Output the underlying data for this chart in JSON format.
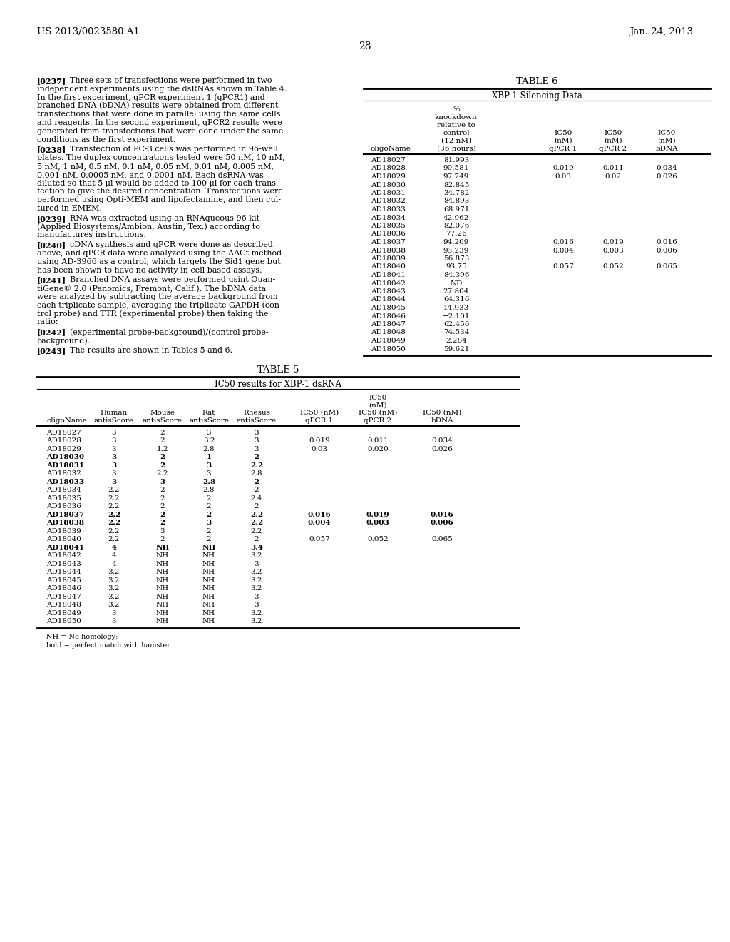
{
  "page_number": "28",
  "patent_number": "US 2013/0023580 A1",
  "patent_date": "Jan. 24, 2013",
  "background_color": "#ffffff",
  "paragraphs": [
    {
      "tag": "[0237]",
      "lines": [
        "Three sets of transfections were performed in two",
        "independent experiments using the dsRNAs shown in Table 4.",
        "In the first experiment, qPCR experiment 1 (qPCR1) and",
        "branched DNA (bDNA) results were obtained from different",
        "transfections that were done in parallel using the same cells",
        "and reagents. In the second experiment, qPCR2 results were",
        "generated from transfections that were done under the same",
        "conditions as the first experiment."
      ]
    },
    {
      "tag": "[0238]",
      "lines": [
        "Transfection of PC-3 cells was performed in 96-well",
        "plates. The duplex concentrations tested were 50 nM, 10 nM,",
        "5 nM, 1 nM, 0.5 nM, 0.1 nM, 0.05 nM, 0.01 nM, 0.005 nM,",
        "0.001 nM, 0.0005 nM, and 0.0001 nM. Each dsRNA was",
        "diluted so that 5 μl would be added to 100 μl for each trans-",
        "fection to give the desired concentration. Transfections were",
        "performed using Opti-MEM and lipofectamine, and then cul-",
        "tured in EMEM."
      ]
    },
    {
      "tag": "[0239]",
      "lines": [
        "RNA was extracted using an RNAqueous 96 kit",
        "(Applied Biosystems/Ambion, Austin, Tex.) according to",
        "manufactures instructions."
      ]
    },
    {
      "tag": "[0240]",
      "lines": [
        "cDNA synthesis and qPCR were done as described",
        "above, and qPCR data were analyzed using the ΔΔCt method",
        "using AD-3966 as a control, which targets the Sid1 gene but",
        "has been shown to have no activity in cell based assays."
      ]
    },
    {
      "tag": "[0241]",
      "lines": [
        "Branched DNA assays were performed usint Quan-",
        "tiGene® 2.0 (Panomics, Fremont, Calif.). The bDNA data",
        "were analyzed by subtracting the average background from",
        "each triplicate sample, averaging the triplicate GAPDH (con-",
        "trol probe) and TTR (experimental probe) then taking the",
        "ratio:"
      ]
    },
    {
      "tag": "[0242]",
      "lines": [
        "(experimental probe-background)/(control probe-",
        "background)."
      ]
    },
    {
      "tag": "[0243]",
      "lines": [
        "The results are shown in Tables 5 and 6."
      ]
    }
  ],
  "table6_title": "TABLE 6",
  "table6_subtitle": "XBP-1 Silencing Data",
  "table6_rows": [
    [
      "AD18027",
      "81.993",
      "",
      "",
      ""
    ],
    [
      "AD18028",
      "90.581",
      "0.019",
      "0.011",
      "0.034"
    ],
    [
      "AD18029",
      "97.749",
      "0.03",
      "0.02",
      "0.026"
    ],
    [
      "AD18030",
      "82.845",
      "",
      "",
      ""
    ],
    [
      "AD18031",
      "34.782",
      "",
      "",
      ""
    ],
    [
      "AD18032",
      "84.893",
      "",
      "",
      ""
    ],
    [
      "AD18033",
      "68.971",
      "",
      "",
      ""
    ],
    [
      "AD18034",
      "42.962",
      "",
      "",
      ""
    ],
    [
      "AD18035",
      "82.076",
      "",
      "",
      ""
    ],
    [
      "AD18036",
      "77.26",
      "",
      "",
      ""
    ],
    [
      "AD18037",
      "94.209",
      "0.016",
      "0.019",
      "0.016"
    ],
    [
      "AD18038",
      "93.239",
      "0.004",
      "0.003",
      "0.006"
    ],
    [
      "AD18039",
      "56.873",
      "",
      "",
      ""
    ],
    [
      "AD18040",
      "93.75",
      "0.057",
      "0.052",
      "0.065"
    ],
    [
      "AD18041",
      "84.396",
      "",
      "",
      ""
    ],
    [
      "AD18042",
      "ND",
      "",
      "",
      ""
    ],
    [
      "AD18043",
      "27.804",
      "",
      "",
      ""
    ],
    [
      "AD18044",
      "64.316",
      "",
      "",
      ""
    ],
    [
      "AD18045",
      "14.933",
      "",
      "",
      ""
    ],
    [
      "AD18046",
      "−2.101",
      "",
      "",
      ""
    ],
    [
      "AD18047",
      "62.456",
      "",
      "",
      ""
    ],
    [
      "AD18048",
      "74.534",
      "",
      "",
      ""
    ],
    [
      "AD18049",
      "2.284",
      "",
      "",
      ""
    ],
    [
      "AD18050",
      "59.621",
      "",
      "",
      ""
    ]
  ],
  "table5_title": "TABLE 5",
  "table5_subtitle": "IC50 results for XBP-1 dsRNA",
  "table5_rows": [
    [
      "AD18027",
      "3",
      "2",
      "3",
      "3",
      "",
      "",
      "",
      false
    ],
    [
      "AD18028",
      "3",
      "2",
      "3.2",
      "3",
      "0.019",
      "0.011",
      "0.034",
      false
    ],
    [
      "AD18029",
      "3",
      "1.2",
      "2.8",
      "3",
      "0.03",
      "0.020",
      "0.026",
      false
    ],
    [
      "AD18030",
      "3",
      "2",
      "1",
      "2",
      "",
      "",
      "",
      true
    ],
    [
      "AD18031",
      "3",
      "2",
      "3",
      "2.2",
      "",
      "",
      "",
      true
    ],
    [
      "AD18032",
      "3",
      "2.2",
      "3",
      "2.8",
      "",
      "",
      "",
      false
    ],
    [
      "AD18033",
      "3",
      "3",
      "2.8",
      "2",
      "",
      "",
      "",
      true
    ],
    [
      "AD18034",
      "2.2",
      "2",
      "2.8",
      "2",
      "",
      "",
      "",
      false
    ],
    [
      "AD18035",
      "2.2",
      "2",
      "2",
      "2.4",
      "",
      "",
      "",
      false
    ],
    [
      "AD18036",
      "2.2",
      "2",
      "2",
      "2",
      "",
      "",
      "",
      false
    ],
    [
      "AD18037",
      "2.2",
      "2",
      "2",
      "2.2",
      "0.016",
      "0.019",
      "0.016",
      true
    ],
    [
      "AD18038",
      "2.2",
      "2",
      "3",
      "2.2",
      "0.004",
      "0.003",
      "0.006",
      true
    ],
    [
      "AD18039",
      "2.2",
      "3",
      "2",
      "2.2",
      "",
      "",
      "",
      false
    ],
    [
      "AD18040",
      "2.2",
      "2",
      "2",
      "2",
      "0.057",
      "0.052",
      "0.065",
      false
    ],
    [
      "AD18041",
      "4",
      "NH",
      "NH",
      "3.4",
      "",
      "",
      "",
      true
    ],
    [
      "AD18042",
      "4",
      "NH",
      "NH",
      "3.2",
      "",
      "",
      "",
      false
    ],
    [
      "AD18043",
      "4",
      "NH",
      "NH",
      "3",
      "",
      "",
      "",
      false
    ],
    [
      "AD18044",
      "3.2",
      "NH",
      "NH",
      "3.2",
      "",
      "",
      "",
      false
    ],
    [
      "AD18045",
      "3.2",
      "NH",
      "NH",
      "3.2",
      "",
      "",
      "",
      false
    ],
    [
      "AD18046",
      "3.2",
      "NH",
      "NH",
      "3.2",
      "",
      "",
      "",
      false
    ],
    [
      "AD18047",
      "3.2",
      "NH",
      "NH",
      "3",
      "",
      "",
      "",
      false
    ],
    [
      "AD18048",
      "3.2",
      "NH",
      "NH",
      "3",
      "",
      "",
      "",
      false
    ],
    [
      "AD18049",
      "3",
      "NH",
      "NH",
      "3.2",
      "",
      "",
      "",
      false
    ],
    [
      "AD18050",
      "3",
      "NH",
      "NH",
      "3.2",
      "",
      "",
      "",
      false
    ]
  ],
  "table5_footnotes": [
    "NH = No homology;",
    "bold = perfect match with hamster"
  ]
}
